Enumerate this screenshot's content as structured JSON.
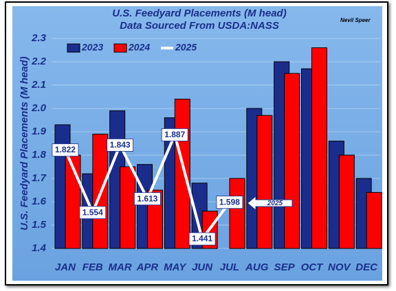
{
  "chart_data": {
    "type": "bar",
    "title": "U.S. Feedyard Placements (M head)",
    "subtitle": "Data Sourced From USDA:NASS",
    "author": "Nevil Speer",
    "y_label": "U.S. Feedyard Placements (M head)",
    "annotation": "2025",
    "categories": [
      "JAN",
      "FEB",
      "MAR",
      "APR",
      "MAY",
      "JUN",
      "JUL",
      "AUG",
      "SEP",
      "OCT",
      "NOV",
      "DEC"
    ],
    "series": [
      {
        "name": "2023",
        "type": "bar",
        "color": "#1b2d8c",
        "values": [
          1.93,
          1.72,
          1.99,
          1.76,
          1.96,
          1.68,
          null,
          2.0,
          2.2,
          2.17,
          1.86,
          1.7
        ]
      },
      {
        "name": "2024",
        "type": "bar",
        "color": "#ff0000",
        "values": [
          1.8,
          1.89,
          1.75,
          1.65,
          2.04,
          1.56,
          1.7,
          1.97,
          2.15,
          2.26,
          1.8,
          1.64
        ]
      },
      {
        "name": "2025",
        "type": "line",
        "color": "#ffffff",
        "values": [
          1.822,
          1.554,
          1.843,
          1.613,
          1.887,
          1.441,
          1.598,
          null,
          null,
          null,
          null,
          null
        ]
      }
    ],
    "ylim": [
      1.4,
      2.3
    ],
    "yticks": [
      1.4,
      1.5,
      1.6,
      1.7,
      1.8,
      1.9,
      {
        "value": 2,
        "label": "2.0"
      },
      2.1,
      2.2,
      2.3
    ],
    "grid": true,
    "legend": "top-left"
  }
}
